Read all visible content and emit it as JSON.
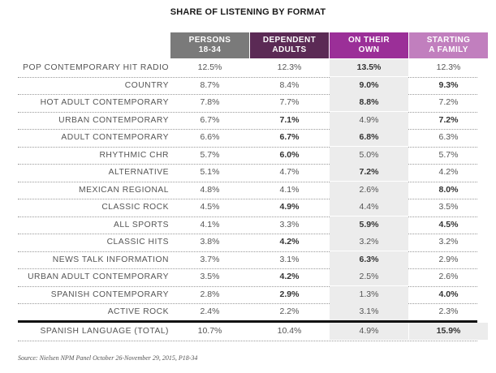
{
  "chart_data": {
    "type": "table",
    "title": "SHARE OF LISTENING BY FORMAT",
    "columns": [
      {
        "line1": "PERSONS",
        "line2": "18-34",
        "color": "#7a7a7a"
      },
      {
        "line1": "DEPENDENT",
        "line2": "ADULTS",
        "color": "#5b2a55"
      },
      {
        "line1": "ON THEIR",
        "line2": "OWN",
        "color": "#9b2f98"
      },
      {
        "line1": "STARTING",
        "line2": "A FAMILY",
        "color": "#c17fbe"
      }
    ],
    "rows": [
      {
        "label": "POP CONTEMPORARY HIT RADIO",
        "values": [
          "12.5%",
          "12.3%",
          "13.5%",
          "12.3%"
        ],
        "highlight": [
          false,
          false,
          true,
          false
        ]
      },
      {
        "label": "COUNTRY",
        "values": [
          "8.7%",
          "8.4%",
          "9.0%",
          "9.3%"
        ],
        "highlight": [
          false,
          false,
          true,
          true
        ]
      },
      {
        "label": "HOT ADULT CONTEMPORARY",
        "values": [
          "7.8%",
          "7.7%",
          "8.8%",
          "7.2%"
        ],
        "highlight": [
          false,
          false,
          true,
          false
        ]
      },
      {
        "label": "URBAN CONTEMPORARY",
        "values": [
          "6.7%",
          "7.1%",
          "4.9%",
          "7.2%"
        ],
        "highlight": [
          false,
          true,
          false,
          true
        ]
      },
      {
        "label": "ADULT CONTEMPORARY",
        "values": [
          "6.6%",
          "6.7%",
          "6.8%",
          "6.3%"
        ],
        "highlight": [
          false,
          true,
          true,
          false
        ]
      },
      {
        "label": "RHYTHMIC CHR",
        "values": [
          "5.7%",
          "6.0%",
          "5.0%",
          "5.7%"
        ],
        "highlight": [
          false,
          true,
          false,
          false
        ]
      },
      {
        "label": "ALTERNATIVE",
        "values": [
          "5.1%",
          "4.7%",
          "7.2%",
          "4.2%"
        ],
        "highlight": [
          false,
          false,
          true,
          false
        ]
      },
      {
        "label": "MEXICAN REGIONAL",
        "values": [
          "4.8%",
          "4.1%",
          "2.6%",
          "8.0%"
        ],
        "highlight": [
          false,
          false,
          false,
          true
        ]
      },
      {
        "label": "CLASSIC ROCK",
        "values": [
          "4.5%",
          "4.9%",
          "4.4%",
          "3.5%"
        ],
        "highlight": [
          false,
          true,
          false,
          false
        ]
      },
      {
        "label": "ALL SPORTS",
        "values": [
          "4.1%",
          "3.3%",
          "5.9%",
          "4.5%"
        ],
        "highlight": [
          false,
          false,
          true,
          true
        ]
      },
      {
        "label": "CLASSIC HITS",
        "values": [
          "3.8%",
          "4.2%",
          "3.2%",
          "3.2%"
        ],
        "highlight": [
          false,
          true,
          false,
          false
        ]
      },
      {
        "label": "NEWS TALK INFORMATION",
        "values": [
          "3.7%",
          "3.1%",
          "6.3%",
          "2.9%"
        ],
        "highlight": [
          false,
          false,
          true,
          false
        ]
      },
      {
        "label": "URBAN ADULT CONTEMPORARY",
        "values": [
          "3.5%",
          "4.2%",
          "2.5%",
          "2.6%"
        ],
        "highlight": [
          false,
          true,
          false,
          false
        ]
      },
      {
        "label": "SPANISH CONTEMPORARY",
        "values": [
          "2.8%",
          "2.9%",
          "1.3%",
          "4.0%"
        ],
        "highlight": [
          false,
          true,
          false,
          true
        ]
      },
      {
        "label": "ACTIVE ROCK",
        "values": [
          "2.4%",
          "2.2%",
          "3.1%",
          "2.3%"
        ],
        "highlight": [
          false,
          false,
          false,
          false
        ]
      }
    ],
    "total_row": {
      "label": "SPANISH LANGUAGE (TOTAL)",
      "values": [
        "10.7%",
        "10.4%",
        "4.9%",
        "15.9%"
      ],
      "highlight": [
        false,
        false,
        false,
        true
      ]
    },
    "source": "Source: Nielsen NPM Panel October 26-November 29, 2015, P18-34",
    "colors": {
      "shade": "#ececec",
      "rule": "#111111"
    }
  }
}
